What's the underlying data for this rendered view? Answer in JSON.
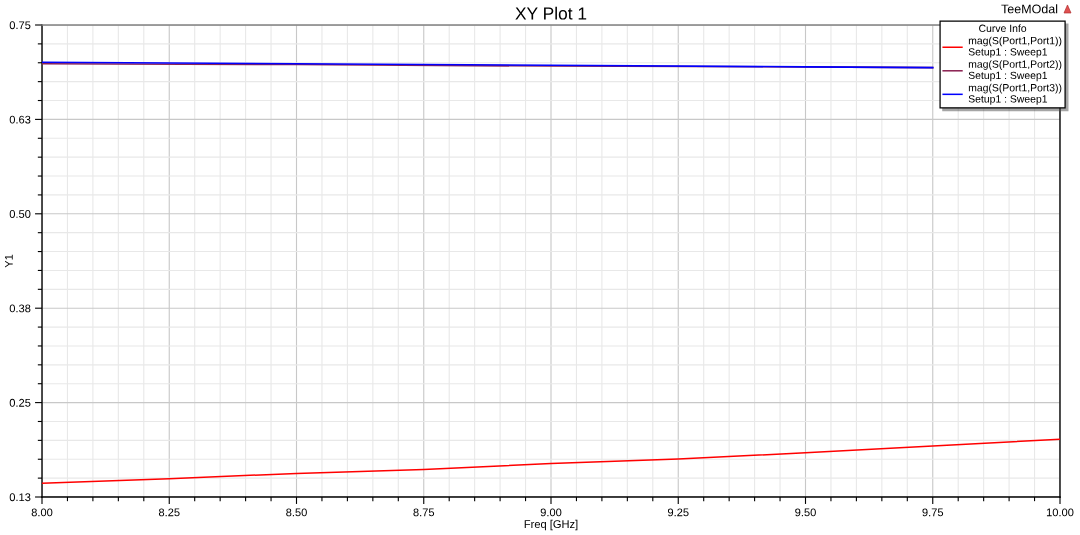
{
  "chart_data": {
    "type": "line",
    "title": "XY Plot 1",
    "xlabel": "Freq [GHz]",
    "ylabel": "Y1",
    "legend_title": "Curve Info",
    "annotations": [
      "TeeMOdal"
    ],
    "xlim": [
      8.0,
      10.0
    ],
    "ylim": [
      0.13,
      0.75
    ],
    "xticks": [
      {
        "value": 8.0,
        "label": "8.00"
      },
      {
        "value": 8.25,
        "label": "8.25"
      },
      {
        "value": 8.5,
        "label": "8.50"
      },
      {
        "value": 8.75,
        "label": "8.75"
      },
      {
        "value": 9.0,
        "label": "9.00"
      },
      {
        "value": 9.25,
        "label": "9.25"
      },
      {
        "value": 9.5,
        "label": "9.50"
      },
      {
        "value": 9.75,
        "label": "9.75"
      },
      {
        "value": 10.0,
        "label": "10.00"
      }
    ],
    "yticks": [
      0.13,
      {
        "value": 0.254,
        "label": "0.25"
      },
      {
        "value": 0.378,
        "label": "0.38"
      },
      {
        "value": 0.502,
        "label": "0.50"
      },
      {
        "value": 0.626,
        "label": "0.63"
      },
      0.75
    ],
    "grid": true,
    "legend": "top right",
    "marker": "none",
    "line_style": "solid",
    "series": [
      {
        "name": "mag(S(Port1,Port1))\nSetup1 : Sweep1",
        "color": "#ff0000",
        "x": [
          8.0,
          8.25,
          8.5,
          8.75,
          9.0,
          9.25,
          9.5,
          9.75,
          10.0
        ],
        "values": [
          0.148,
          0.154,
          0.161,
          0.166,
          0.174,
          0.18,
          0.188,
          0.197,
          0.206
        ]
      },
      {
        "name": "mag(S(Port1,Port2))\nSetup1 : Sweep1",
        "color": "#8b2252",
        "x": [
          8.0,
          8.5,
          9.0,
          9.5,
          9.75
        ],
        "values": [
          0.699,
          0.698,
          0.696,
          0.695,
          0.694
        ]
      },
      {
        "name": "mag(S(Port1,Port3))\nSetup1 : Sweep1",
        "color": "#0000ff",
        "x": [
          8.0,
          8.5,
          9.0,
          9.5,
          9.75
        ],
        "values": [
          0.701,
          0.699,
          0.697,
          0.695,
          0.694
        ]
      }
    ]
  }
}
